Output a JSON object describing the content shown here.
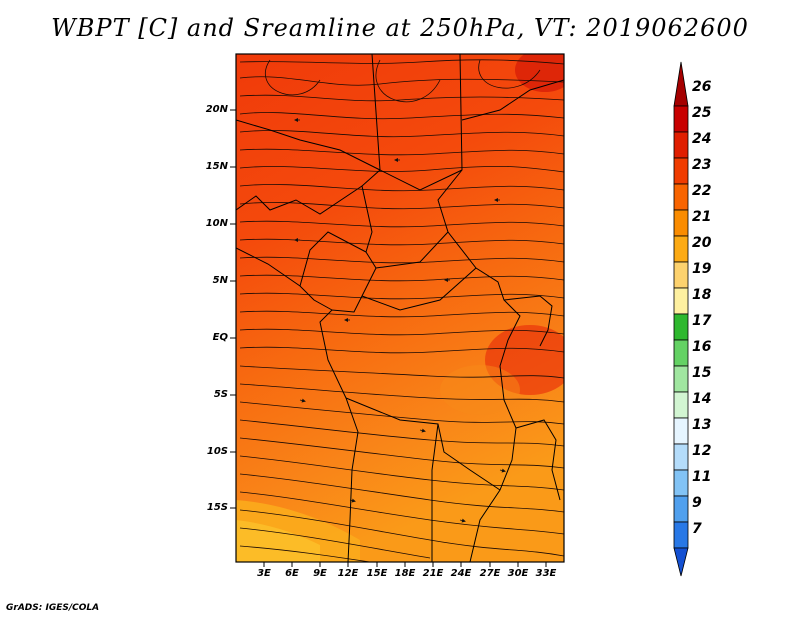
{
  "title": "WBPT [C] and Sreamline at 250hPa, VT: 2019062600",
  "latitude_labels": [
    "20N",
    "15N",
    "10N",
    "5N",
    "EQ",
    "5S",
    "10S",
    "15S"
  ],
  "longitude_labels": [
    "3E",
    "6E",
    "9E",
    "12E",
    "15E",
    "18E",
    "21E",
    "24E",
    "27E",
    "30E",
    "33E"
  ],
  "colorbar": {
    "levels": [
      "26",
      "25",
      "24",
      "23",
      "22",
      "21",
      "20",
      "19",
      "18",
      "17",
      "16",
      "15",
      "14",
      "13",
      "12",
      "11",
      "9",
      "7"
    ],
    "colors": [
      "#a50000",
      "#c80000",
      "#e01e00",
      "#f03c00",
      "#f86400",
      "#fa8c00",
      "#fcaa14",
      "#fdd26e",
      "#fef0a0",
      "#2eb82e",
      "#64d264",
      "#a0e6a0",
      "#d2f5d2",
      "#e6f5ff",
      "#b4dcfa",
      "#82c3f5",
      "#50a0ee",
      "#2878e6",
      "#1450d2"
    ]
  },
  "credit": "GrADS: IGES/COLA"
}
